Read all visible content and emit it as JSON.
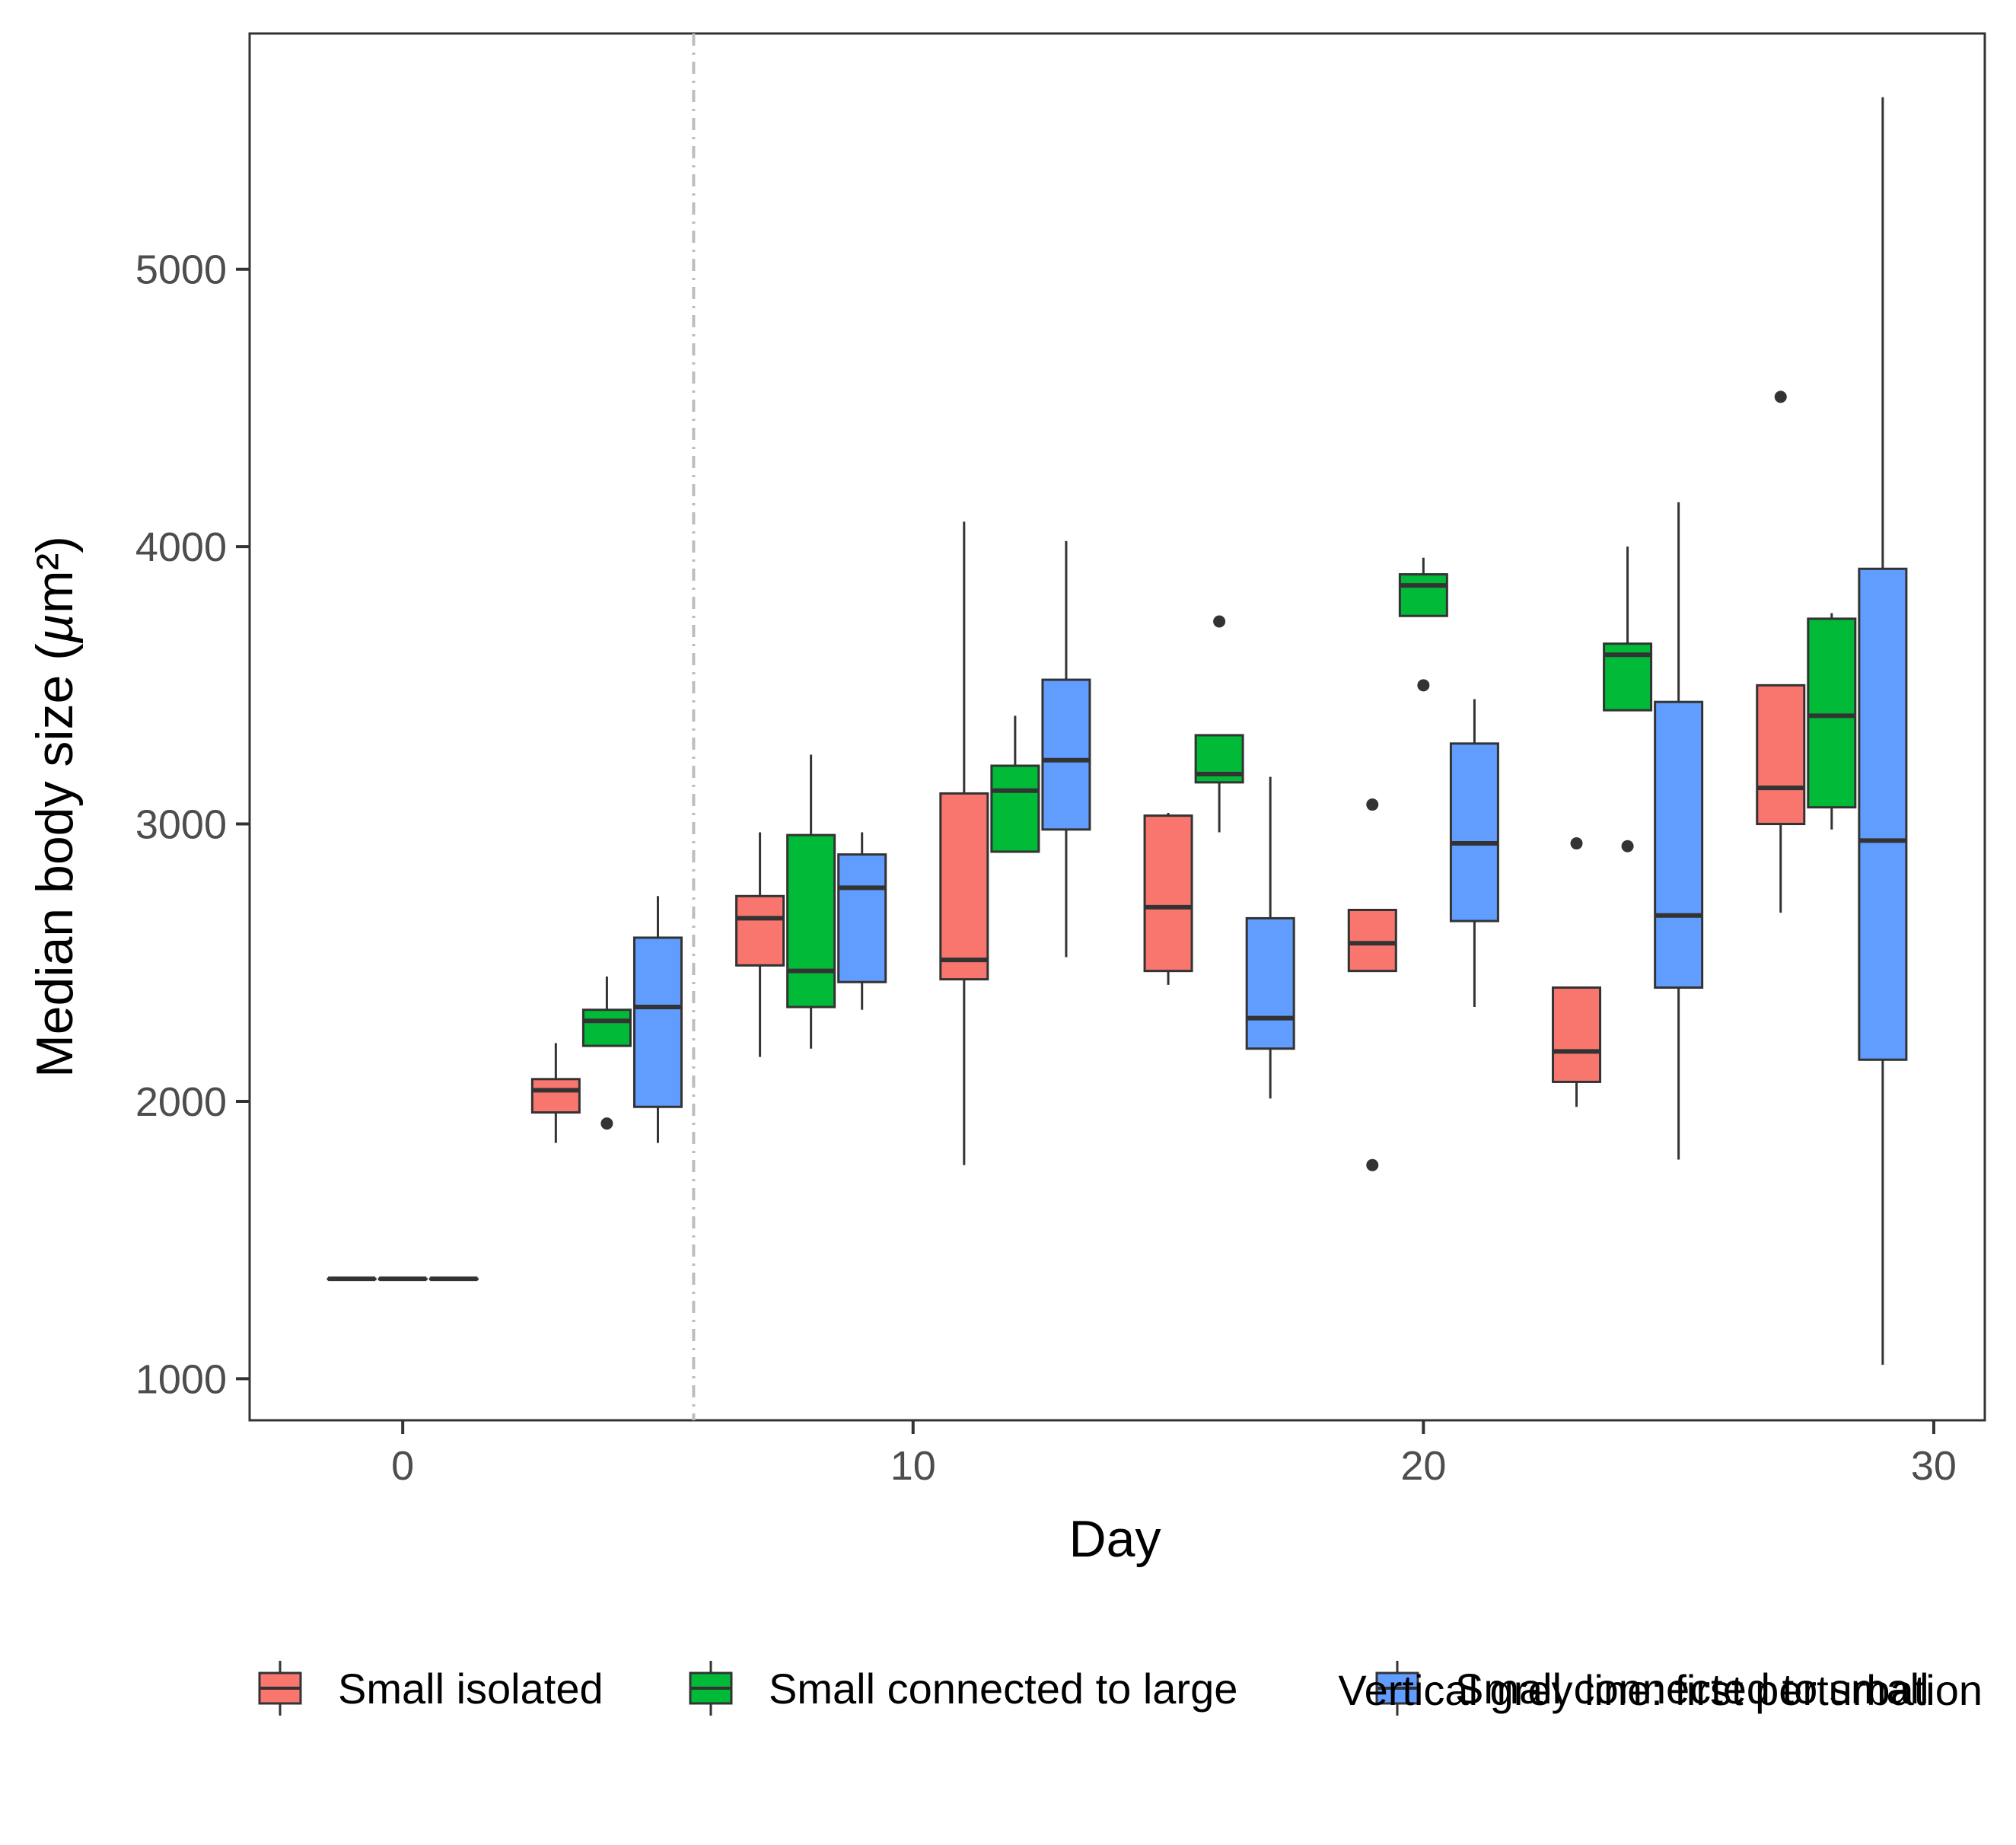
{
  "chart_data": {
    "type": "boxplot",
    "xlabel": "Day",
    "ylabel_main": "Median body size (",
    "ylabel_mu": "µ",
    "ylabel_tail": "m²)",
    "xlim": [
      -3,
      31
    ],
    "ylim": [
      850,
      5850
    ],
    "xticks": [
      0,
      10,
      20,
      30
    ],
    "xtick_labels": [
      "0",
      "10",
      "20",
      "30"
    ],
    "yticks": [
      1000,
      2000,
      3000,
      4000,
      5000
    ],
    "ytick_labels": [
      "1000",
      "2000",
      "3000",
      "4000",
      "5000"
    ],
    "vline": {
      "x": 5.7,
      "style": "dash-dot",
      "color": "#bebebe"
    },
    "caption": "Vertical grey line: first perturbation",
    "grid": false,
    "legend_position": "bottom",
    "series": [
      {
        "name": "Small isolated",
        "color": "#f8766d"
      },
      {
        "name": "Small connected to large",
        "color": "#00ba38"
      },
      {
        "name": "Small connected to small",
        "color": "#619cff"
      }
    ],
    "boxes": [
      {
        "series": 0,
        "x": -1.0,
        "whisker_low": 1360,
        "q1": 1360,
        "median": 1360,
        "q3": 1360,
        "whisker_high": 1360,
        "outliers": []
      },
      {
        "series": 1,
        "x": 0.0,
        "whisker_low": 1360,
        "q1": 1360,
        "median": 1360,
        "q3": 1360,
        "whisker_high": 1360,
        "outliers": []
      },
      {
        "series": 2,
        "x": 1.0,
        "whisker_low": 1360,
        "q1": 1360,
        "median": 1360,
        "q3": 1360,
        "whisker_high": 1360,
        "outliers": []
      },
      {
        "series": 0,
        "x": 3.0,
        "whisker_low": 1850,
        "q1": 1960,
        "median": 2040,
        "q3": 2080,
        "whisker_high": 2210,
        "outliers": []
      },
      {
        "series": 1,
        "x": 4.0,
        "whisker_low": 2200,
        "q1": 2200,
        "median": 2290,
        "q3": 2330,
        "whisker_high": 2450,
        "outliers": [
          1920
        ]
      },
      {
        "series": 2,
        "x": 5.0,
        "whisker_low": 1850,
        "q1": 1980,
        "median": 2340,
        "q3": 2590,
        "whisker_high": 2740,
        "outliers": []
      },
      {
        "series": 0,
        "x": 7.0,
        "whisker_low": 2160,
        "q1": 2490,
        "median": 2660,
        "q3": 2740,
        "whisker_high": 2970,
        "outliers": []
      },
      {
        "series": 1,
        "x": 8.0,
        "whisker_low": 2190,
        "q1": 2340,
        "median": 2470,
        "q3": 2960,
        "whisker_high": 3250,
        "outliers": []
      },
      {
        "series": 2,
        "x": 9.0,
        "whisker_low": 2330,
        "q1": 2430,
        "median": 2770,
        "q3": 2890,
        "whisker_high": 2970,
        "outliers": []
      },
      {
        "series": 0,
        "x": 11.0,
        "whisker_low": 1770,
        "q1": 2440,
        "median": 2510,
        "q3": 3110,
        "whisker_high": 4090,
        "outliers": []
      },
      {
        "series": 1,
        "x": 12.0,
        "whisker_low": 2900,
        "q1": 2900,
        "median": 3120,
        "q3": 3210,
        "whisker_high": 3390,
        "outliers": []
      },
      {
        "series": 2,
        "x": 13.0,
        "whisker_low": 2520,
        "q1": 2980,
        "median": 3230,
        "q3": 3520,
        "whisker_high": 4020,
        "outliers": []
      },
      {
        "series": 0,
        "x": 15.0,
        "whisker_low": 2420,
        "q1": 2470,
        "median": 2700,
        "q3": 3030,
        "whisker_high": 3040,
        "outliers": []
      },
      {
        "series": 1,
        "x": 16.0,
        "whisker_low": 2970,
        "q1": 3150,
        "median": 3180,
        "q3": 3320,
        "whisker_high": 3320,
        "outliers": [
          3730
        ]
      },
      {
        "series": 2,
        "x": 17.0,
        "whisker_low": 2010,
        "q1": 2190,
        "median": 2300,
        "q3": 2660,
        "whisker_high": 3170,
        "outliers": []
      },
      {
        "series": 0,
        "x": 19.0,
        "whisker_low": 2470,
        "q1": 2470,
        "median": 2570,
        "q3": 2690,
        "whisker_high": 2690,
        "outliers": [
          3070,
          1770
        ]
      },
      {
        "series": 1,
        "x": 20.0,
        "whisker_low": 3750,
        "q1": 3750,
        "median": 3860,
        "q3": 3900,
        "whisker_high": 3960,
        "outliers": [
          3500
        ]
      },
      {
        "series": 2,
        "x": 21.0,
        "whisker_low": 2340,
        "q1": 2650,
        "median": 2930,
        "q3": 3290,
        "whisker_high": 3450,
        "outliers": []
      },
      {
        "series": 0,
        "x": 23.0,
        "whisker_low": 1980,
        "q1": 2070,
        "median": 2180,
        "q3": 2410,
        "whisker_high": 2410,
        "outliers": [
          2930
        ]
      },
      {
        "series": 1,
        "x": 24.0,
        "whisker_low": 3410,
        "q1": 3410,
        "median": 3610,
        "q3": 3650,
        "whisker_high": 4000,
        "outliers": [
          2920
        ]
      },
      {
        "series": 2,
        "x": 25.0,
        "whisker_low": 1790,
        "q1": 2410,
        "median": 2670,
        "q3": 3440,
        "whisker_high": 4160,
        "outliers": []
      },
      {
        "series": 0,
        "x": 27.0,
        "whisker_low": 2680,
        "q1": 3000,
        "median": 3130,
        "q3": 3500,
        "whisker_high": 3500,
        "outliers": [
          4540
        ]
      },
      {
        "series": 1,
        "x": 28.0,
        "whisker_low": 2980,
        "q1": 3060,
        "median": 3390,
        "q3": 3740,
        "whisker_high": 3760,
        "outliers": []
      },
      {
        "series": 2,
        "x": 29.0,
        "whisker_low": 1050,
        "q1": 2150,
        "median": 2940,
        "q3": 3920,
        "whisker_high": 5620,
        "outliers": []
      }
    ]
  }
}
